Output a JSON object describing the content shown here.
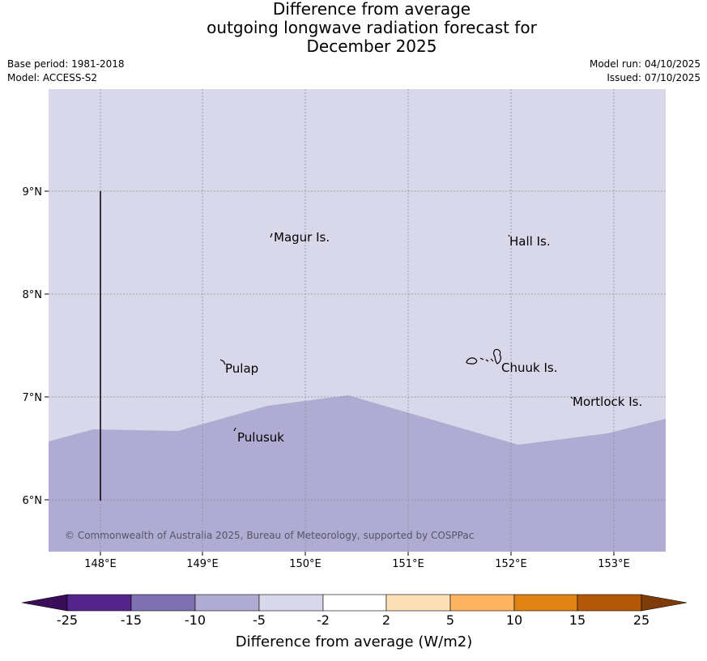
{
  "header": {
    "title_lines": [
      "Difference from average",
      "outgoing longwave radiation forecast for",
      "December 2025"
    ],
    "base_period": "Base period: 1981-2018",
    "model": "Model: ACCESS-S2",
    "model_run": "Model run: 04/10/2025",
    "issued": "Issued: 07/10/2025"
  },
  "map": {
    "lon_range": [
      147.5,
      153.5
    ],
    "lat_range": [
      5.5,
      10.0
    ],
    "x_ticks": [
      "148°E",
      "149°E",
      "150°E",
      "151°E",
      "152°E",
      "153°E"
    ],
    "y_ticks": [
      "9°N",
      "8°N",
      "7°N",
      "6°N"
    ],
    "places": [
      "Magur Is.",
      "Hall Is.",
      "Pulap",
      "Chuuk Is.",
      "Mortlock Is.",
      "Pulusuk"
    ],
    "fill_colors": {
      "upper": "#d8d8ea",
      "lower": "#b0abd2"
    },
    "copyright": "© Commonwealth of Australia 2025, Bureau of Meteorology, supported by COSPPac"
  },
  "colorbar": {
    "title": "Difference from average (W/m2)",
    "tick_labels": [
      "-25",
      "-15",
      "-10",
      "-5",
      "-2",
      "2",
      "5",
      "10",
      "15",
      "25"
    ],
    "colors": [
      "#3b0c5a",
      "#54248a",
      "#7f72b0",
      "#b0abd2",
      "#d8d8ea",
      "#ffffff",
      "#fee0b6",
      "#fdb462",
      "#e08214",
      "#b35806",
      "#7f3b08"
    ]
  }
}
